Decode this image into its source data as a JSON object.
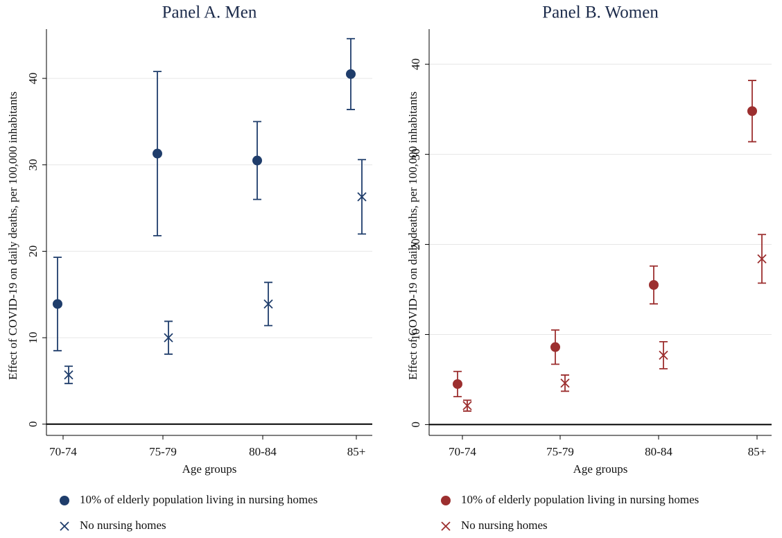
{
  "chart_data": [
    {
      "type": "scatter",
      "title": "Panel A. Men",
      "x_label": "Age groups",
      "y_label": "Effect of COVID-19 on daily deaths, per 100,000 inhabitants",
      "categories": [
        "70-74",
        "75-79",
        "80-84",
        "85+"
      ],
      "ylim": [
        -1.3,
        45.7
      ],
      "yticks": [
        0,
        10,
        20,
        30,
        40
      ],
      "grid": true,
      "series": [
        {
          "name": "10% of elderly population living in nursing homes",
          "color": "#1f3d6b",
          "marker": "circle",
          "values": [
            13.9,
            31.3,
            30.5,
            40.5
          ],
          "errors": [
            5.4,
            9.5,
            4.5,
            4.1
          ]
        },
        {
          "name": "No nursing homes",
          "color": "#1f3d6b",
          "marker": "x",
          "values": [
            5.7,
            10.0,
            13.9,
            26.3
          ],
          "errors": [
            1.0,
            1.9,
            2.5,
            4.3
          ]
        }
      ]
    },
    {
      "type": "scatter",
      "title": "Panel B. Women",
      "x_label": "Age groups",
      "y_label": "Effect of COVID-19 on daily deaths, per 100,000 inhabitants",
      "categories": [
        "70-74",
        "75-79",
        "80-84",
        "85+"
      ],
      "ylim": [
        -1.2,
        43.9
      ],
      "yticks": [
        0,
        10,
        20,
        30,
        40
      ],
      "grid": true,
      "series": [
        {
          "name": "10% of elderly population living in nursing homes",
          "color": "#9c2f2f",
          "marker": "circle",
          "values": [
            4.5,
            8.6,
            15.5,
            34.8
          ],
          "errors": [
            1.4,
            1.9,
            2.1,
            3.4
          ]
        },
        {
          "name": "No nursing homes",
          "color": "#9c2f2f",
          "marker": "x",
          "values": [
            2.1,
            4.6,
            7.7,
            18.4
          ],
          "errors": [
            0.6,
            0.9,
            1.5,
            2.7
          ]
        }
      ]
    }
  ]
}
